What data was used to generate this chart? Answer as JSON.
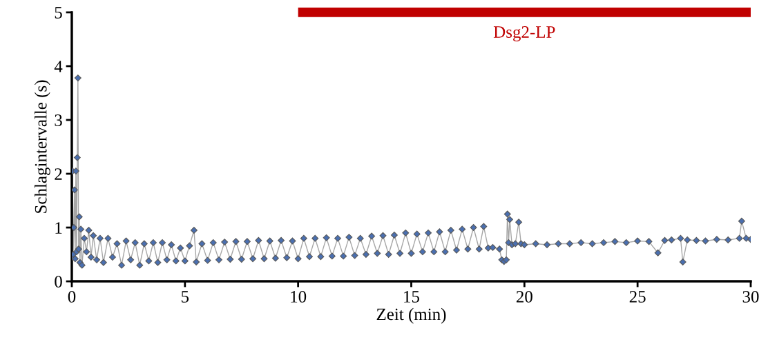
{
  "chart_data": {
    "type": "line",
    "xlabel": "Zeit (min)",
    "ylabel": "Schlagintervalle (s)",
    "xlim": [
      0,
      30
    ],
    "ylim": [
      0,
      5
    ],
    "xticks": [
      0,
      5,
      10,
      15,
      20,
      25,
      30
    ],
    "yticks": [
      0,
      1,
      2,
      3,
      4,
      5
    ],
    "grid": false,
    "legend": false,
    "line_style": "solid",
    "series": [
      {
        "color": "#a6a6a6",
        "marker": "diamond",
        "x": [
          0.0,
          0.03,
          0.06,
          0.09,
          0.12,
          0.15,
          0.18,
          0.21,
          0.24,
          0.27,
          0.3,
          0.33,
          0.36,
          0.4,
          0.45,
          0.55,
          0.65,
          0.75,
          0.85,
          0.95,
          1.1,
          1.25,
          1.4,
          1.6,
          1.8,
          2.0,
          2.2,
          2.4,
          2.6,
          2.8,
          3.0,
          3.2,
          3.4,
          3.6,
          3.8,
          4.0,
          4.2,
          4.4,
          4.6,
          4.8,
          5.0,
          5.2,
          5.4,
          5.5,
          5.75,
          6.0,
          6.25,
          6.5,
          6.75,
          7.0,
          7.25,
          7.5,
          7.75,
          8.0,
          8.25,
          8.5,
          8.75,
          9.0,
          9.25,
          9.5,
          9.75,
          10.0,
          10.25,
          10.5,
          10.75,
          11.0,
          11.25,
          11.5,
          11.75,
          12.0,
          12.25,
          12.5,
          12.75,
          13.0,
          13.25,
          13.5,
          13.75,
          14.0,
          14.25,
          14.5,
          14.75,
          15.0,
          15.25,
          15.5,
          15.75,
          16.0,
          16.25,
          16.5,
          16.75,
          17.0,
          17.25,
          17.5,
          17.75,
          18.0,
          18.2,
          18.4,
          18.6,
          18.9,
          19.0,
          19.1,
          19.2,
          19.25,
          19.3,
          19.35,
          19.45,
          19.6,
          19.75,
          19.85,
          20.0,
          20.5,
          21.0,
          21.5,
          22.0,
          22.5,
          23.0,
          23.5,
          24.0,
          24.5,
          25.0,
          25.5,
          25.9,
          26.2,
          26.5,
          26.9,
          27.0,
          27.2,
          27.6,
          28.0,
          28.5,
          29.0,
          29.5,
          29.6,
          29.8,
          30.0
        ],
        "values": [
          0.45,
          2.05,
          0.5,
          1.0,
          1.7,
          0.42,
          2.05,
          0.55,
          2.3,
          3.78,
          0.6,
          1.2,
          0.35,
          0.97,
          0.3,
          0.8,
          0.55,
          0.95,
          0.45,
          0.85,
          0.4,
          0.8,
          0.35,
          0.8,
          0.45,
          0.7,
          0.3,
          0.75,
          0.4,
          0.72,
          0.3,
          0.7,
          0.38,
          0.72,
          0.35,
          0.72,
          0.4,
          0.68,
          0.38,
          0.62,
          0.38,
          0.66,
          0.95,
          0.36,
          0.7,
          0.39,
          0.72,
          0.4,
          0.73,
          0.41,
          0.74,
          0.41,
          0.74,
          0.42,
          0.76,
          0.42,
          0.75,
          0.43,
          0.76,
          0.44,
          0.75,
          0.42,
          0.8,
          0.46,
          0.8,
          0.46,
          0.81,
          0.47,
          0.8,
          0.47,
          0.82,
          0.48,
          0.8,
          0.5,
          0.84,
          0.52,
          0.85,
          0.5,
          0.86,
          0.52,
          0.9,
          0.52,
          0.88,
          0.55,
          0.9,
          0.55,
          0.92,
          0.55,
          0.95,
          0.58,
          0.97,
          0.6,
          1.0,
          0.6,
          1.02,
          0.62,
          0.63,
          0.6,
          0.4,
          0.37,
          0.4,
          1.25,
          0.72,
          1.15,
          0.68,
          0.7,
          1.1,
          0.7,
          0.68,
          0.7,
          0.68,
          0.7,
          0.7,
          0.72,
          0.7,
          0.72,
          0.74,
          0.72,
          0.75,
          0.74,
          0.53,
          0.76,
          0.77,
          0.8,
          0.36,
          0.77,
          0.76,
          0.75,
          0.78,
          0.77,
          0.8,
          1.12,
          0.8,
          0.78
        ]
      },
      {
        "name": "Dsg2-LP",
        "color": "#c00000",
        "marker": "none",
        "x": [
          10,
          30
        ],
        "values": [
          5,
          5
        ]
      }
    ]
  }
}
